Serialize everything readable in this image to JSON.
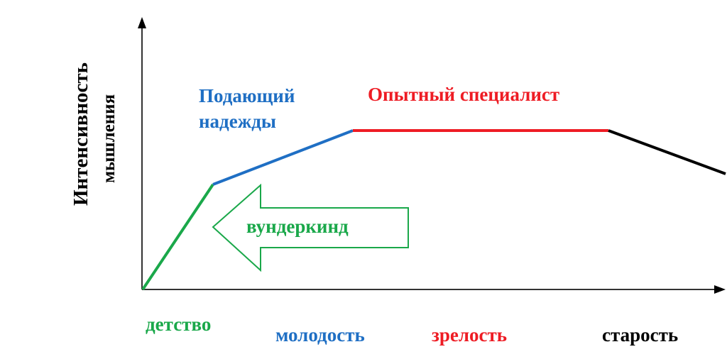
{
  "y_axis_label": {
    "line1": "Интенсивность",
    "line2": "мышления"
  },
  "stages": [
    {
      "label": "детство",
      "color": "#1aa84a"
    },
    {
      "label": "молодость",
      "color": "#1f6fc4"
    },
    {
      "label": "зрелость",
      "color": "#ee1c24"
    },
    {
      "label": "старость",
      "color": "#000000"
    }
  ],
  "annotations": {
    "promising_line1": "Подающий",
    "promising_line2": "надежды",
    "experienced": "Опытный  специалист",
    "prodigy": "вундеркинд"
  },
  "colors": {
    "green": "#1aa84a",
    "blue": "#1f6fc4",
    "red": "#ee1c24",
    "black": "#000000",
    "axis": "#333333"
  }
}
